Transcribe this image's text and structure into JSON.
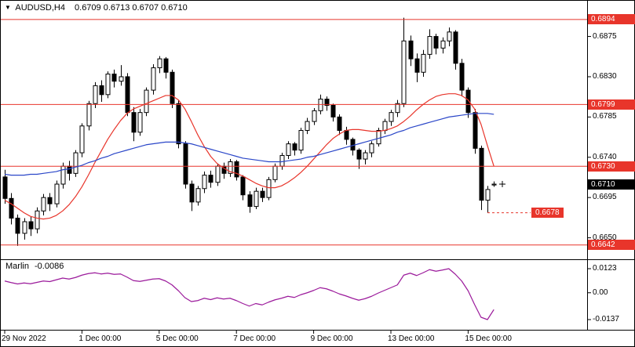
{
  "header": {
    "dropdown_icon": "▼",
    "symbol": "AUDUSD,H4",
    "ohlc": "0.6709 0.6713 0.6707 0.6710"
  },
  "colors": {
    "bg": "#ffffff",
    "border": "#000000",
    "hline": "#e8352b",
    "ma_fast": "#e8352b",
    "ma_slow": "#2a46c8",
    "indicator_line": "#9b1a9b",
    "bull": "#ffffff",
    "bear": "#000000",
    "current_tag_bg": "#000000",
    "tag_text": "#ffffff"
  },
  "chart_data": {
    "type": "candlestick",
    "symbol": "AUDUSD",
    "timeframe": "H4",
    "current_ohlc": {
      "open": 0.6709,
      "high": 0.6713,
      "low": 0.6707,
      "close": 0.671
    },
    "price_axis": {
      "top": 0.6907,
      "bottom": 0.6626,
      "ticks": [
        {
          "price": 0.6875,
          "label": "0.6875"
        },
        {
          "price": 0.683,
          "label": "0.6830"
        },
        {
          "price": 0.6785,
          "label": "0.6785"
        },
        {
          "price": 0.674,
          "label": "0.6740"
        },
        {
          "price": 0.6695,
          "label": "0.6695"
        },
        {
          "price": 0.665,
          "label": "0.6650"
        }
      ]
    },
    "horizontal_lines": [
      {
        "price": 0.6894,
        "label": "0.6894"
      },
      {
        "price": 0.6799,
        "label": "0.6799"
      },
      {
        "price": 0.673,
        "label": "0.6730"
      },
      {
        "price": 0.6642,
        "label": "0.6642"
      }
    ],
    "current_price_tag": {
      "price": 0.671,
      "label": "0.6710"
    },
    "price_marker": {
      "price": 0.6678,
      "label": "0.6678",
      "from_index": 75
    },
    "x_axis_labels": [
      {
        "index": 0,
        "label": "29 Nov 2022"
      },
      {
        "index": 12,
        "label": "1 Dec 00:00"
      },
      {
        "index": 24,
        "label": "5 Dec 00:00"
      },
      {
        "index": 36,
        "label": "7 Dec 00:00"
      },
      {
        "index": 48,
        "label": "9 Dec 00:00"
      },
      {
        "index": 60,
        "label": "13 Dec 00:00"
      },
      {
        "index": 72,
        "label": "15 Dec 00:00"
      }
    ],
    "candles": [
      [
        0.6718,
        0.6726,
        0.6688,
        0.6694
      ],
      [
        0.6694,
        0.67,
        0.6665,
        0.6672
      ],
      [
        0.6672,
        0.6676,
        0.6641,
        0.6655
      ],
      [
        0.6655,
        0.6672,
        0.6648,
        0.6668
      ],
      [
        0.6668,
        0.6674,
        0.6652,
        0.666
      ],
      [
        0.666,
        0.6684,
        0.6655,
        0.668
      ],
      [
        0.668,
        0.6699,
        0.6675,
        0.6695
      ],
      [
        0.6695,
        0.67,
        0.668,
        0.6688
      ],
      [
        0.6688,
        0.6714,
        0.6684,
        0.671
      ],
      [
        0.671,
        0.6734,
        0.6705,
        0.673
      ],
      [
        0.673,
        0.6736,
        0.6714,
        0.6722
      ],
      [
        0.6722,
        0.6748,
        0.6718,
        0.6745
      ],
      [
        0.6745,
        0.6778,
        0.674,
        0.6775
      ],
      [
        0.6775,
        0.6803,
        0.677,
        0.68
      ],
      [
        0.68,
        0.6824,
        0.6795,
        0.682
      ],
      [
        0.682,
        0.6826,
        0.6802,
        0.681
      ],
      [
        0.681,
        0.6836,
        0.6806,
        0.6833
      ],
      [
        0.6833,
        0.6838,
        0.6818,
        0.6825
      ],
      [
        0.6825,
        0.6843,
        0.682,
        0.683
      ],
      [
        0.683,
        0.6834,
        0.6786,
        0.679
      ],
      [
        0.679,
        0.6796,
        0.6758,
        0.6768
      ],
      [
        0.6768,
        0.6794,
        0.6764,
        0.679
      ],
      [
        0.679,
        0.6818,
        0.6786,
        0.6815
      ],
      [
        0.6815,
        0.6844,
        0.681,
        0.684
      ],
      [
        0.684,
        0.6853,
        0.6834,
        0.685
      ],
      [
        0.685,
        0.6852,
        0.6828,
        0.6835
      ],
      [
        0.6835,
        0.6838,
        0.6795,
        0.68
      ],
      [
        0.68,
        0.6804,
        0.675,
        0.6755
      ],
      [
        0.6755,
        0.6758,
        0.6705,
        0.671
      ],
      [
        0.671,
        0.6714,
        0.668,
        0.669
      ],
      [
        0.669,
        0.6708,
        0.6686,
        0.6705
      ],
      [
        0.6705,
        0.6724,
        0.67,
        0.672
      ],
      [
        0.672,
        0.6725,
        0.6706,
        0.6712
      ],
      [
        0.6712,
        0.6733,
        0.6708,
        0.673
      ],
      [
        0.673,
        0.6734,
        0.6716,
        0.6722
      ],
      [
        0.6722,
        0.6738,
        0.6718,
        0.6735
      ],
      [
        0.6735,
        0.6737,
        0.6714,
        0.6718
      ],
      [
        0.6718,
        0.672,
        0.6692,
        0.6698
      ],
      [
        0.6698,
        0.6702,
        0.6678,
        0.6685
      ],
      [
        0.6685,
        0.6706,
        0.6682,
        0.6702
      ],
      [
        0.6702,
        0.6706,
        0.669,
        0.6695
      ],
      [
        0.6695,
        0.6718,
        0.6692,
        0.6715
      ],
      [
        0.6715,
        0.6733,
        0.6712,
        0.673
      ],
      [
        0.673,
        0.6745,
        0.6726,
        0.6742
      ],
      [
        0.6742,
        0.6758,
        0.6738,
        0.6755
      ],
      [
        0.6755,
        0.6757,
        0.6742,
        0.6748
      ],
      [
        0.6748,
        0.6773,
        0.6744,
        0.677
      ],
      [
        0.677,
        0.6784,
        0.6766,
        0.678
      ],
      [
        0.678,
        0.6795,
        0.6776,
        0.6792
      ],
      [
        0.6792,
        0.681,
        0.6788,
        0.6805
      ],
      [
        0.6805,
        0.6808,
        0.6792,
        0.6798
      ],
      [
        0.6798,
        0.68,
        0.678,
        0.6785
      ],
      [
        0.6785,
        0.6788,
        0.6765,
        0.677
      ],
      [
        0.677,
        0.6774,
        0.6754,
        0.676
      ],
      [
        0.676,
        0.6762,
        0.6742,
        0.6748
      ],
      [
        0.6748,
        0.675,
        0.6727,
        0.6738
      ],
      [
        0.6738,
        0.6748,
        0.6732,
        0.6745
      ],
      [
        0.6745,
        0.6758,
        0.674,
        0.6755
      ],
      [
        0.6755,
        0.6773,
        0.6752,
        0.677
      ],
      [
        0.677,
        0.6783,
        0.6766,
        0.678
      ],
      [
        0.678,
        0.6793,
        0.6775,
        0.679
      ],
      [
        0.679,
        0.6804,
        0.6785,
        0.68
      ],
      [
        0.68,
        0.6896,
        0.6796,
        0.687
      ],
      [
        0.687,
        0.6876,
        0.6842,
        0.685
      ],
      [
        0.685,
        0.6856,
        0.6824,
        0.6835
      ],
      [
        0.6835,
        0.686,
        0.683,
        0.6855
      ],
      [
        0.6855,
        0.6883,
        0.685,
        0.6875
      ],
      [
        0.6875,
        0.6878,
        0.6855,
        0.6862
      ],
      [
        0.6862,
        0.6874,
        0.6856,
        0.687
      ],
      [
        0.687,
        0.6885,
        0.6864,
        0.688
      ],
      [
        0.688,
        0.6882,
        0.6838,
        0.6845
      ],
      [
        0.6845,
        0.685,
        0.6808,
        0.6815
      ],
      [
        0.6815,
        0.6818,
        0.6784,
        0.679
      ],
      [
        0.679,
        0.6794,
        0.6744,
        0.675
      ],
      [
        0.675,
        0.6753,
        0.6681,
        0.6692
      ],
      [
        0.6692,
        0.6708,
        0.6678,
        0.6704
      ],
      [
        0.6709,
        0.6713,
        0.6707,
        0.671
      ]
    ],
    "ma_fast": [
      0.6692,
      0.6688,
      0.6683,
      0.6678,
      0.6674,
      0.6672,
      0.6671,
      0.6672,
      0.6675,
      0.668,
      0.6687,
      0.6696,
      0.6707,
      0.672,
      0.6734,
      0.6747,
      0.676,
      0.6771,
      0.6781,
      0.6789,
      0.6794,
      0.6797,
      0.68,
      0.6803,
      0.6806,
      0.6809,
      0.6809,
      0.6804,
      0.6794,
      0.678,
      0.6765,
      0.6752,
      0.6741,
      0.6733,
      0.6728,
      0.6724,
      0.6722,
      0.6719,
      0.6715,
      0.6711,
      0.6708,
      0.6706,
      0.6706,
      0.6708,
      0.6712,
      0.6717,
      0.6723,
      0.673,
      0.6738,
      0.6746,
      0.6754,
      0.6761,
      0.6766,
      0.677,
      0.6771,
      0.6771,
      0.677,
      0.6769,
      0.6769,
      0.677,
      0.6772,
      0.6775,
      0.678,
      0.6786,
      0.6793,
      0.6799,
      0.6804,
      0.6808,
      0.681,
      0.6811,
      0.6811,
      0.6809,
      0.6804,
      0.6794,
      0.6777,
      0.6753,
      0.673
    ],
    "ma_slow": [
      0.6721,
      0.672,
      0.672,
      0.672,
      0.6721,
      0.6721,
      0.6722,
      0.6723,
      0.6724,
      0.6726,
      0.6727,
      0.6729,
      0.6731,
      0.6734,
      0.6736,
      0.6739,
      0.6741,
      0.6744,
      0.6746,
      0.6748,
      0.675,
      0.6752,
      0.6754,
      0.6755,
      0.6756,
      0.6757,
      0.6757,
      0.6757,
      0.6756,
      0.6755,
      0.6753,
      0.6751,
      0.6749,
      0.6747,
      0.6745,
      0.6743,
      0.6741,
      0.6739,
      0.6738,
      0.6737,
      0.6736,
      0.6735,
      0.6735,
      0.6735,
      0.6736,
      0.6737,
      0.6738,
      0.674,
      0.6741,
      0.6743,
      0.6745,
      0.6747,
      0.6749,
      0.6751,
      0.6753,
      0.6755,
      0.6757,
      0.6759,
      0.6761,
      0.6763,
      0.6765,
      0.6768,
      0.677,
      0.6773,
      0.6775,
      0.6777,
      0.6779,
      0.6781,
      0.6783,
      0.6785,
      0.6786,
      0.6787,
      0.6788,
      0.6789,
      0.6789,
      0.6789,
      0.6788
    ],
    "indicator": {
      "name": "Marlin",
      "value": "-0.0086",
      "max": 0.0123,
      "min": -0.0137,
      "ticks": [
        {
          "value": 0.0123,
          "label": "0.0123"
        },
        {
          "value": 0,
          "label": "0.00"
        },
        {
          "value": -0.0137,
          "label": "-0.0137"
        }
      ],
      "values": [
        0.006,
        0.0052,
        0.0045,
        0.005,
        0.0046,
        0.0053,
        0.006,
        0.0057,
        0.0066,
        0.0075,
        0.007,
        0.0078,
        0.009,
        0.0098,
        0.0102,
        0.0096,
        0.01,
        0.0094,
        0.0096,
        0.008,
        0.0062,
        0.0058,
        0.0064,
        0.007,
        0.0072,
        0.006,
        0.004,
        0.001,
        -0.0025,
        -0.0045,
        -0.004,
        -0.0028,
        -0.0035,
        -0.0026,
        -0.0032,
        -0.0028,
        -0.004,
        -0.0055,
        -0.0068,
        -0.0055,
        -0.0062,
        -0.0048,
        -0.0036,
        -0.0028,
        -0.0018,
        -0.0024,
        -0.001,
        0.0,
        0.0012,
        0.0026,
        0.002,
        0.0008,
        -0.0006,
        -0.0016,
        -0.0028,
        -0.0038,
        -0.003,
        -0.0018,
        -0.0002,
        0.0012,
        0.0026,
        0.004,
        0.009,
        0.01,
        0.0088,
        0.0102,
        0.0118,
        0.011,
        0.0116,
        0.0123,
        0.0095,
        0.006,
        0.001,
        -0.006,
        -0.0125,
        -0.0137,
        -0.0086
      ]
    }
  }
}
